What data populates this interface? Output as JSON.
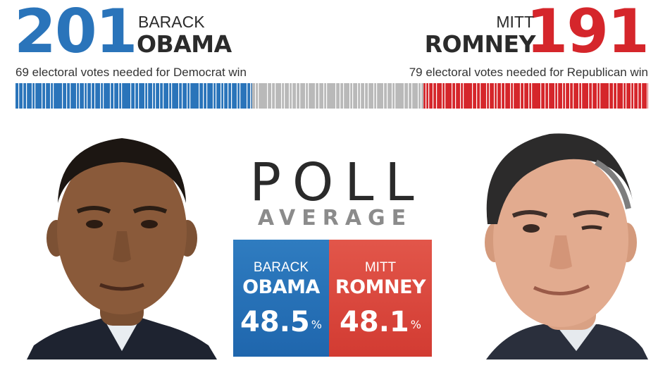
{
  "colors": {
    "democrat": "#2a74ba",
    "republican": "#d5262b",
    "undecided": "#b9b9b9",
    "text_dark": "#2b2b2b",
    "subtitle_gray": "#8b8b8b"
  },
  "obama": {
    "electoral_votes": "201",
    "first_name": "BARACK",
    "last_name": "OBAMA",
    "needed_note": "69 electoral votes needed for Democrat win",
    "poll_first": "BARACK",
    "poll_last": "OBAMA",
    "poll_value": "48.5",
    "poll_unit": "%"
  },
  "romney": {
    "electoral_votes": "191",
    "first_name": "MITT",
    "last_name": "ROMNEY",
    "needed_note": "79 electoral votes needed for Republican win",
    "poll_first": "MITT",
    "poll_last": "ROMNEY",
    "poll_value": "48.1",
    "poll_unit": "%"
  },
  "electoral_bar": {
    "total": 538,
    "democrat": 201,
    "republican": 191
  },
  "poll": {
    "title": "POLL",
    "subtitle": "AVERAGE"
  }
}
